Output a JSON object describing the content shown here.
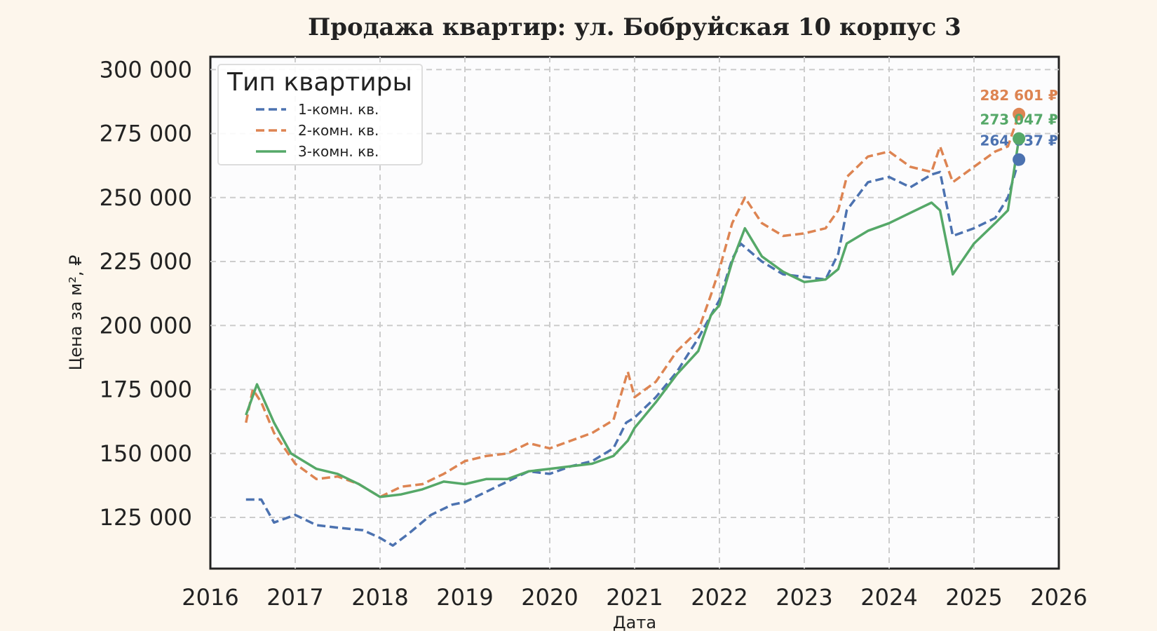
{
  "chart_data": {
    "type": "line",
    "title": "Продажа квартир: ул. Бобруйская 10 корпус 3",
    "xlabel": "Дата",
    "ylabel": "Цена за м², ₽",
    "xlim": [
      2016.0,
      2026.0
    ],
    "ylim": [
      105000,
      305000
    ],
    "x_ticks": [
      "2016",
      "2017",
      "2018",
      "2019",
      "2020",
      "2021",
      "2022",
      "2023",
      "2024",
      "2025",
      "2026"
    ],
    "y_ticks": [
      "125 000",
      "150 000",
      "175 000",
      "200 000",
      "225 000",
      "250 000",
      "275 000",
      "300 000"
    ],
    "grid": true,
    "legend": {
      "title": "Тип квартиры",
      "position": "top-left",
      "entries": [
        "1-комн. кв.",
        "2-комн. кв.",
        "3-комн. кв."
      ]
    },
    "series": [
      {
        "name": "1-комн. кв.",
        "color": "#4c72b0",
        "style": "dashed",
        "x": [
          2016.42,
          2016.6,
          2016.75,
          2017.0,
          2017.25,
          2017.5,
          2017.8,
          2018.0,
          2018.15,
          2018.35,
          2018.6,
          2018.85,
          2019.0,
          2019.25,
          2019.5,
          2019.75,
          2020.0,
          2020.25,
          2020.5,
          2020.75,
          2020.9,
          2021.0,
          2021.25,
          2021.5,
          2021.75,
          2021.9,
          2022.0,
          2022.15,
          2022.25,
          2022.5,
          2022.75,
          2023.0,
          2023.25,
          2023.4,
          2023.5,
          2023.75,
          2024.0,
          2024.25,
          2024.5,
          2024.6,
          2024.75,
          2025.0,
          2025.25,
          2025.4,
          2025.53
        ],
        "y": [
          132000,
          132000,
          123000,
          126000,
          122000,
          121000,
          120000,
          117000,
          114000,
          119000,
          126000,
          130000,
          131000,
          135000,
          139000,
          143000,
          142000,
          145000,
          147000,
          152000,
          162000,
          164000,
          172000,
          182000,
          195000,
          204000,
          210000,
          226000,
          232000,
          225000,
          220000,
          219000,
          218000,
          228000,
          245000,
          256000,
          258000,
          254000,
          259000,
          260000,
          235000,
          238000,
          242000,
          250000,
          264837
        ]
      },
      {
        "name": "2-комн. кв.",
        "color": "#dd8452",
        "style": "dashed",
        "x": [
          2016.42,
          2016.5,
          2016.6,
          2016.75,
          2017.0,
          2017.25,
          2017.5,
          2017.75,
          2018.0,
          2018.25,
          2018.5,
          2018.75,
          2019.0,
          2019.25,
          2019.5,
          2019.75,
          2020.0,
          2020.25,
          2020.5,
          2020.75,
          2020.92,
          2021.0,
          2021.25,
          2021.5,
          2021.75,
          2021.9,
          2022.0,
          2022.15,
          2022.3,
          2022.5,
          2022.75,
          2023.0,
          2023.25,
          2023.4,
          2023.5,
          2023.75,
          2024.0,
          2024.25,
          2024.5,
          2024.6,
          2024.75,
          2025.0,
          2025.25,
          2025.4,
          2025.53
        ],
        "y": [
          162000,
          175000,
          170000,
          158000,
          146000,
          140000,
          141000,
          138000,
          133000,
          137000,
          138000,
          142000,
          147000,
          149000,
          150000,
          154000,
          152000,
          155000,
          158000,
          163000,
          182000,
          172000,
          178000,
          190000,
          198000,
          212000,
          222000,
          240000,
          250000,
          240000,
          235000,
          236000,
          238000,
          245000,
          258000,
          266000,
          268000,
          262000,
          260000,
          270000,
          256000,
          262000,
          268000,
          270000,
          282601
        ]
      },
      {
        "name": "3-комн. кв.",
        "color": "#55a868",
        "style": "solid",
        "x": [
          2016.42,
          2016.55,
          2016.75,
          2016.95,
          2017.25,
          2017.5,
          2017.75,
          2018.0,
          2018.25,
          2018.5,
          2018.75,
          2019.0,
          2019.25,
          2019.5,
          2019.75,
          2020.0,
          2020.25,
          2020.5,
          2020.75,
          2020.92,
          2021.0,
          2021.25,
          2021.5,
          2021.75,
          2021.9,
          2022.0,
          2022.15,
          2022.3,
          2022.5,
          2022.75,
          2023.0,
          2023.25,
          2023.4,
          2023.5,
          2023.75,
          2024.0,
          2024.25,
          2024.5,
          2024.6,
          2024.75,
          2025.0,
          2025.25,
          2025.4,
          2025.53
        ],
        "y": [
          165000,
          177000,
          162000,
          150000,
          144000,
          142000,
          138000,
          133000,
          134000,
          136000,
          139000,
          138000,
          140000,
          140000,
          143000,
          144000,
          145000,
          146000,
          149000,
          155000,
          160000,
          170000,
          181000,
          190000,
          204000,
          208000,
          225000,
          238000,
          227000,
          221000,
          217000,
          218000,
          222000,
          232000,
          237000,
          240000,
          244000,
          248000,
          245000,
          220000,
          232000,
          240000,
          245000,
          273047
        ]
      }
    ],
    "end_points": [
      {
        "series": "1-комн. кв.",
        "x": 2025.53,
        "y": 264837,
        "label": "264 837 ₽",
        "color": "#4c72b0"
      },
      {
        "series": "2-комн. кв.",
        "x": 2025.53,
        "y": 282601,
        "label": "282 601 ₽",
        "color": "#dd8452"
      },
      {
        "series": "3-комн. кв.",
        "x": 2025.53,
        "y": 273047,
        "label": "273 047 ₽",
        "color": "#55a868"
      }
    ]
  }
}
